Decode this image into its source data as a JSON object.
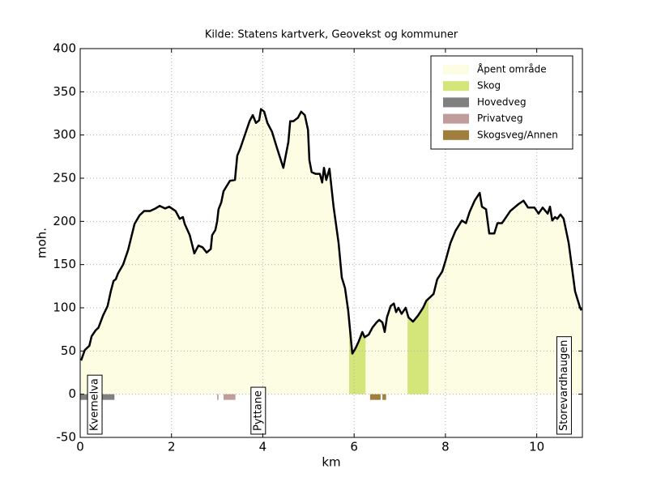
{
  "chart_data": {
    "type": "elevation-profile",
    "title": "Kilde: Statens kartverk, Geovekst og kommuner",
    "x_label": "km",
    "y_label": "moh.",
    "xlim": [
      0,
      11
    ],
    "ylim": [
      -50,
      400
    ],
    "xticks": [
      0,
      2,
      4,
      6,
      8,
      10
    ],
    "yticks": [
      -50,
      0,
      50,
      100,
      150,
      200,
      250,
      300,
      350,
      400
    ],
    "grid": true,
    "legend_position": "upper right",
    "profile": {
      "color": "#000000",
      "x": [
        0.02,
        0.1,
        0.2,
        0.25,
        0.34,
        0.4,
        0.5,
        0.6,
        0.67,
        0.73,
        0.78,
        0.83,
        0.94,
        1.05,
        1.19,
        1.3,
        1.4,
        1.53,
        1.65,
        1.74,
        1.86,
        1.95,
        2.09,
        2.18,
        2.25,
        2.29,
        2.4,
        2.5,
        2.59,
        2.68,
        2.77,
        2.86,
        2.89,
        2.96,
        3.0,
        3.03,
        3.09,
        3.14,
        3.21,
        3.28,
        3.39,
        3.44,
        3.51,
        3.6,
        3.71,
        3.78,
        3.85,
        3.92,
        3.96,
        4.03,
        4.1,
        4.2,
        4.31,
        4.45,
        4.56,
        4.6,
        4.67,
        4.77,
        4.84,
        4.92,
        4.99,
        5.02,
        5.07,
        5.16,
        5.25,
        5.3,
        5.34,
        5.39,
        5.46,
        5.55,
        5.66,
        5.73,
        5.8,
        5.87,
        5.96,
        6.03,
        6.1,
        6.18,
        6.23,
        6.32,
        6.4,
        6.49,
        6.55,
        6.62,
        6.67,
        6.72,
        6.8,
        6.87,
        6.92,
        6.97,
        7.04,
        7.13,
        7.19,
        7.29,
        7.4,
        7.51,
        7.58,
        7.74,
        7.82,
        7.93,
        8.0,
        8.11,
        8.22,
        8.36,
        8.45,
        8.53,
        8.64,
        8.75,
        8.8,
        8.89,
        8.96,
        9.07,
        9.14,
        9.24,
        9.42,
        9.6,
        9.71,
        9.81,
        9.95,
        10.04,
        10.13,
        10.24,
        10.29,
        10.34,
        10.4,
        10.45,
        10.52,
        10.59,
        10.7,
        10.84,
        10.95,
        10.98
      ],
      "values": [
        39,
        51,
        56,
        67,
        74,
        77,
        91,
        102,
        119,
        131,
        133,
        140,
        150,
        167,
        197,
        207,
        212,
        212,
        215,
        218,
        215,
        217,
        212,
        203,
        205,
        197,
        184,
        163,
        172,
        170,
        164,
        168,
        184,
        190,
        200,
        214,
        222,
        235,
        241,
        247,
        248,
        276,
        285,
        299,
        316,
        323,
        314,
        317,
        330,
        327,
        314,
        304,
        285,
        262,
        292,
        316,
        316,
        320,
        327,
        323,
        306,
        271,
        257,
        255,
        255,
        245,
        262,
        248,
        261,
        217,
        175,
        135,
        123,
        97,
        47,
        53,
        61,
        72,
        66,
        69,
        77,
        83,
        86,
        83,
        72,
        89,
        102,
        105,
        95,
        100,
        93,
        100,
        89,
        84,
        91,
        100,
        108,
        116,
        133,
        142,
        154,
        175,
        189,
        201,
        198,
        211,
        224,
        233,
        217,
        214,
        186,
        186,
        198,
        198,
        212,
        220,
        224,
        216,
        216,
        209,
        216,
        209,
        217,
        201,
        205,
        203,
        208,
        203,
        175,
        119,
        100,
        97
      ]
    },
    "areas": [
      {
        "name": "Åpent område",
        "color": "#fdfde4",
        "ranges": [
          [
            0,
            11
          ]
        ]
      },
      {
        "name": "Skog",
        "color": "#d4e57a",
        "ranges": [
          [
            5.89,
            6.25
          ],
          [
            7.17,
            7.63
          ]
        ]
      }
    ],
    "roads": [
      {
        "name": "Hovedveg",
        "color": "#808080",
        "ranges": [
          [
            0,
            0.75
          ]
        ]
      },
      {
        "name": "Privatveg",
        "color": "#c09c9a",
        "ranges": [
          [
            3.0,
            3.03
          ],
          [
            3.14,
            3.4
          ]
        ]
      },
      {
        "name": "Skogsveg/Annen",
        "color": "#a07f3c",
        "ranges": [
          [
            6.35,
            6.58
          ],
          [
            6.62,
            6.7
          ]
        ]
      }
    ],
    "annotations": [
      {
        "text": "Kvernelva",
        "x": 0.32
      },
      {
        "text": "Pyttane",
        "x": 3.9
      },
      {
        "text": "Storevardhaugen",
        "x": 10.6
      }
    ]
  }
}
